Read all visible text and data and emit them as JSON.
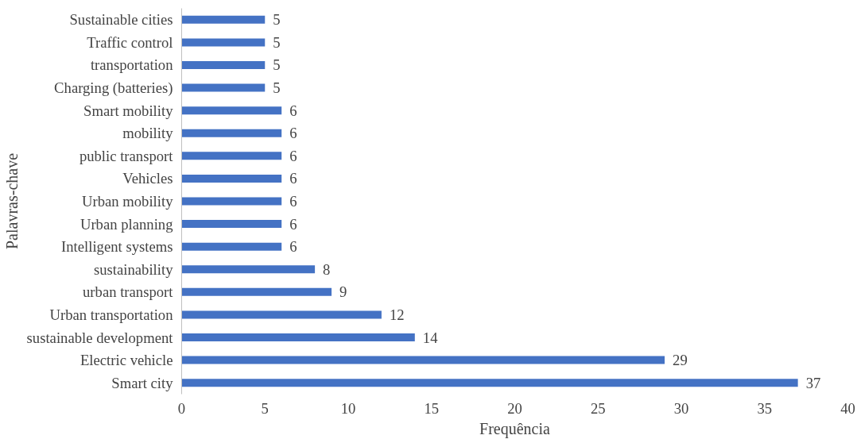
{
  "chart_data": {
    "type": "bar",
    "orientation": "horizontal",
    "xlabel": "Frequência",
    "ylabel": "Palavras-chave",
    "categories": [
      "Sustainable cities",
      "Traffic control",
      "transportation",
      "Charging (batteries)",
      "Smart mobility",
      "mobility",
      "public transport",
      "Vehicles",
      "Urban mobility",
      "Urban planning",
      "Intelligent systems",
      "sustainability",
      "urban transport",
      "Urban transportation",
      "sustainable development",
      "Electric vehicle",
      "Smart city"
    ],
    "values": [
      5,
      5,
      5,
      5,
      6,
      6,
      6,
      6,
      6,
      6,
      6,
      8,
      9,
      12,
      14,
      29,
      37
    ],
    "color": "#4472c4",
    "xlim": [
      0,
      40
    ],
    "xticks": [
      0,
      5,
      10,
      15,
      20,
      25,
      30,
      35,
      40
    ],
    "grid": false,
    "data_labels": true
  }
}
